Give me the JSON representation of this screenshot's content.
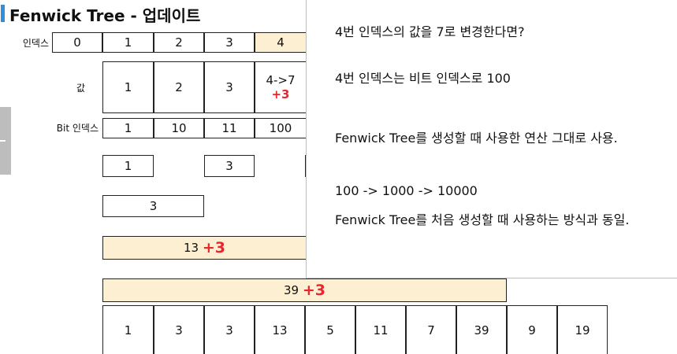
{
  "title": "Fenwick Tree - 업데이트",
  "row_labels": {
    "index": "인덱스",
    "value": "값",
    "bit_index": "Bit 인덱스"
  },
  "index_row": [
    "0",
    "1",
    "2",
    "3",
    "4"
  ],
  "value_row": [
    "1",
    "2",
    "3"
  ],
  "value_change": {
    "text": "4->7",
    "delta": "+3"
  },
  "bit_row": [
    "1",
    "10",
    "11",
    "100"
  ],
  "tree_level1": [
    "1",
    "3"
  ],
  "tree_level2": [
    "3"
  ],
  "tree_level3": {
    "value": "13",
    "delta": "+3"
  },
  "tree_level4": {
    "value": "39",
    "delta": "+3"
  },
  "result_row": [
    "1",
    "3",
    "3",
    "13",
    "5",
    "11",
    "7",
    "39",
    "9",
    "19"
  ],
  "panel": {
    "line1": "4번 인덱스의 값을 7로 변경한다면?",
    "line2": "4번 인덱스는 비트 인덱스로 100",
    "line3": "Fenwick Tree를 생성할 때 사용한 연산 그대로 사용.",
    "line4": "100 ->   1000   ->   10000",
    "line5": "Fenwick Tree를 처음 생성할 때 사용하는 방식과 동일."
  },
  "colors": {
    "accent": "#2f8fd8",
    "highlight": "#fdefd2",
    "delta": "#e8262b"
  }
}
